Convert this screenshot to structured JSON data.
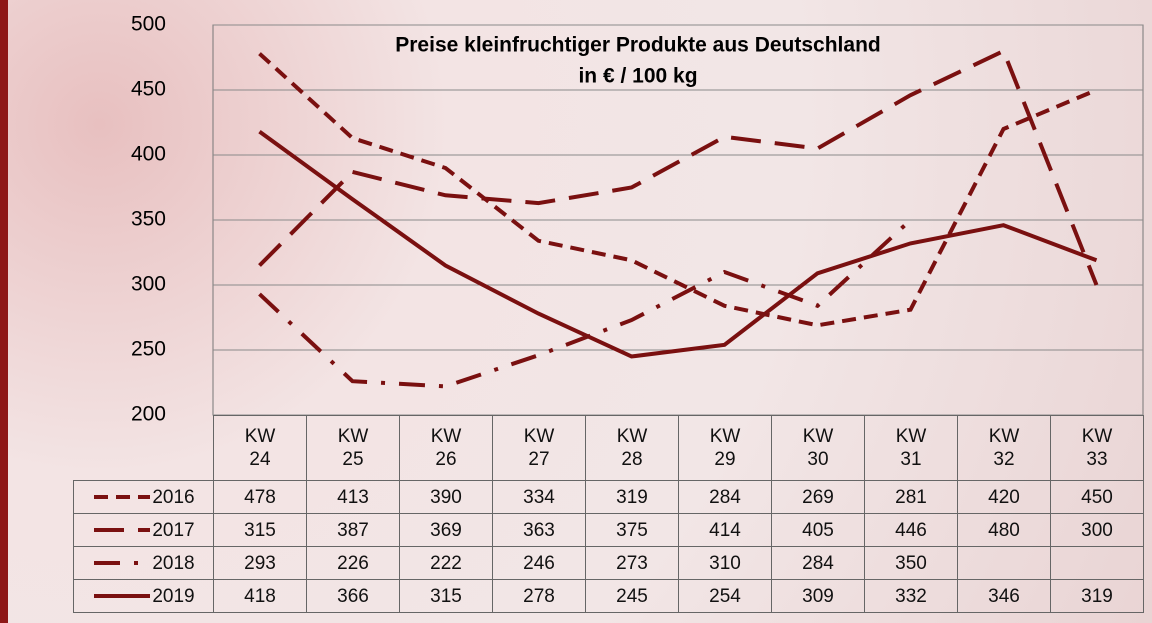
{
  "chart_data": {
    "type": "line",
    "title": "Preise kleinfruchtiger Produkte aus Deutschland",
    "subtitle": "in € / 100 kg",
    "categories": [
      "KW 24",
      "KW 25",
      "KW 26",
      "KW 27",
      "KW 28",
      "KW 29",
      "KW 30",
      "KW 31",
      "KW 32",
      "KW 33"
    ],
    "series": [
      {
        "name": "2016",
        "color": "#7a1010",
        "values": [
          478,
          413,
          390,
          334,
          319,
          284,
          269,
          281,
          420,
          450
        ]
      },
      {
        "name": "2017",
        "color": "#7a1010",
        "values": [
          315,
          387,
          369,
          363,
          375,
          414,
          405,
          446,
          480,
          300
        ]
      },
      {
        "name": "2018",
        "color": "#7a1010",
        "values": [
          293,
          226,
          222,
          246,
          273,
          310,
          284,
          350,
          null,
          null
        ]
      },
      {
        "name": "2019",
        "color": "#7a1010",
        "values": [
          418,
          366,
          315,
          278,
          245,
          254,
          309,
          332,
          346,
          319
        ]
      }
    ],
    "ylim": [
      200,
      500
    ],
    "yticks": [
      200,
      250,
      300,
      350,
      400,
      450,
      500
    ],
    "grid": true
  }
}
